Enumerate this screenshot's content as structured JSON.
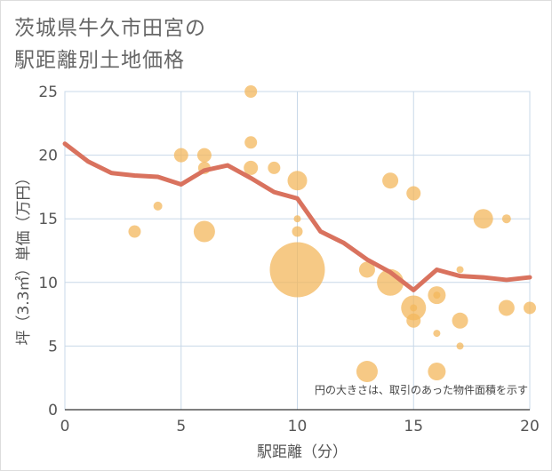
{
  "title_line1": "茨城県牛久市田宮の",
  "title_line2": "駅距離別土地価格",
  "note": "円の大きさは、取引のあった物件面積を示す",
  "colors": {
    "line": "#d9725e",
    "bubble": "#f3b75c",
    "axis_text": "#555555",
    "grid": "#c8d8e8"
  },
  "chart_data": {
    "type": "scatter",
    "xlabel": "駅距離（分）",
    "ylabel": "坪（3.3㎡）単価（万円）",
    "xlim": [
      0,
      20
    ],
    "ylim": [
      0,
      25
    ],
    "x_ticks": [
      "0",
      "5",
      "10",
      "15",
      "20"
    ],
    "y_ticks": [
      "0",
      "5",
      "10",
      "15",
      "20",
      "25"
    ],
    "grid": true,
    "bubbles": [
      {
        "x": 3,
        "y": 14,
        "size": 7
      },
      {
        "x": 4,
        "y": 16,
        "size": 5
      },
      {
        "x": 5,
        "y": 20,
        "size": 8
      },
      {
        "x": 6,
        "y": 20,
        "size": 8
      },
      {
        "x": 6,
        "y": 19,
        "size": 7
      },
      {
        "x": 6,
        "y": 14,
        "size": 12
      },
      {
        "x": 8,
        "y": 25,
        "size": 7
      },
      {
        "x": 8,
        "y": 21,
        "size": 7
      },
      {
        "x": 8,
        "y": 19,
        "size": 8
      },
      {
        "x": 9,
        "y": 19,
        "size": 7
      },
      {
        "x": 10,
        "y": 18,
        "size": 11
      },
      {
        "x": 10,
        "y": 15,
        "size": 4
      },
      {
        "x": 10,
        "y": 14,
        "size": 6
      },
      {
        "x": 10,
        "y": 11,
        "size": 31
      },
      {
        "x": 13,
        "y": 11,
        "size": 9
      },
      {
        "x": 13,
        "y": 3,
        "size": 12
      },
      {
        "x": 14,
        "y": 18,
        "size": 9
      },
      {
        "x": 14,
        "y": 10,
        "size": 15
      },
      {
        "x": 15,
        "y": 17,
        "size": 8
      },
      {
        "x": 15,
        "y": 8,
        "size": 14
      },
      {
        "x": 15,
        "y": 8,
        "size": 4
      },
      {
        "x": 15,
        "y": 7,
        "size": 8
      },
      {
        "x": 16,
        "y": 9,
        "size": 10
      },
      {
        "x": 16,
        "y": 9,
        "size": 4
      },
      {
        "x": 16,
        "y": 6,
        "size": 4
      },
      {
        "x": 16,
        "y": 3,
        "size": 10
      },
      {
        "x": 17,
        "y": 11,
        "size": 4
      },
      {
        "x": 17,
        "y": 7,
        "size": 9
      },
      {
        "x": 17,
        "y": 5,
        "size": 4
      },
      {
        "x": 18,
        "y": 15,
        "size": 11
      },
      {
        "x": 19,
        "y": 15,
        "size": 5
      },
      {
        "x": 19,
        "y": 8,
        "size": 9
      },
      {
        "x": 20,
        "y": 8,
        "size": 7
      }
    ],
    "series": [
      {
        "x": [
          0,
          1,
          2,
          3,
          4,
          5,
          6,
          7,
          8,
          9,
          10,
          11,
          12,
          13,
          14,
          15,
          16,
          17,
          18,
          19,
          20
        ],
        "values": [
          20.9,
          19.5,
          18.6,
          18.4,
          18.3,
          17.7,
          18.8,
          19.2,
          18.2,
          17.1,
          16.6,
          14.0,
          13.1,
          11.8,
          10.8,
          9.4,
          11.0,
          10.5,
          10.4,
          10.2,
          10.4
        ]
      }
    ]
  }
}
